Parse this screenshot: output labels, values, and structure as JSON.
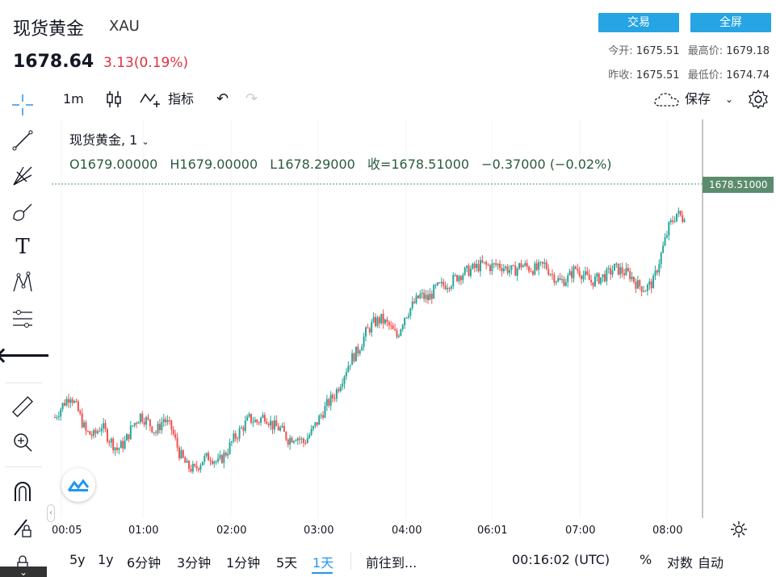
{
  "header": {
    "title": "现货黄金",
    "ticker": "XAU",
    "price": "1678.64",
    "change": "3.13(0.19%)",
    "trade_btn": "交易",
    "fullscreen_btn": "全屏",
    "open_label": "今开:",
    "open_value": "1675.51",
    "high_label": "最高价:",
    "high_value": "1679.18",
    "prev_close_label": "昨收:",
    "prev_close_value": "1675.51",
    "low_label": "最低价:",
    "low_value": "1674.74"
  },
  "toolbar": {
    "interval": "1m",
    "indicators": "指标",
    "save": "保存"
  },
  "legend": {
    "symbol": "现货黄金, 1",
    "o": "O1679.00000",
    "h": "H1679.00000",
    "l": "L1678.29000",
    "c": "收=1678.51000",
    "chg": "−0.37000 (−0.02%)"
  },
  "price_tag": "1678.51000",
  "bottom": {
    "ranges": [
      "5y",
      "1y",
      "6分钟",
      "3分钟",
      "1分钟",
      "5天",
      "1天"
    ],
    "goto": "前往到...",
    "clock": "00:16:02 (UTC)",
    "percent": "%",
    "log": "对数",
    "auto": "自动"
  },
  "colors": {
    "accent": "#26a4e4",
    "up": "#26a69a",
    "down": "#ef5350",
    "negative_text": "#e0313e"
  },
  "chart_data": {
    "type": "candlestick",
    "x_ticks": [
      "00:05",
      "01:00",
      "02:00",
      "03:00",
      "04:00",
      "06:01",
      "07:00",
      "08:00"
    ],
    "ylim": [
      1674.5,
      1679.5
    ],
    "last_price": 1678.51,
    "closes": [
      1675.62,
      1675.8,
      1675.95,
      1675.7,
      1675.4,
      1675.35,
      1675.5,
      1675.3,
      1675.15,
      1675.25,
      1675.5,
      1675.65,
      1675.55,
      1675.4,
      1675.6,
      1675.45,
      1675.1,
      1674.9,
      1674.85,
      1675.0,
      1675.05,
      1674.95,
      1675.1,
      1675.3,
      1675.45,
      1675.6,
      1675.55,
      1675.65,
      1675.5,
      1675.45,
      1675.3,
      1675.35,
      1675.25,
      1675.4,
      1675.6,
      1675.8,
      1675.95,
      1676.2,
      1676.45,
      1676.6,
      1676.85,
      1677.0,
      1677.05,
      1676.95,
      1676.8,
      1677.1,
      1677.25,
      1677.4,
      1677.35,
      1677.5,
      1677.55,
      1677.6,
      1677.7,
      1677.75,
      1677.8,
      1677.85,
      1677.82,
      1677.85,
      1677.8,
      1677.75,
      1677.85,
      1677.8,
      1677.78,
      1677.85,
      1677.7,
      1677.6,
      1677.65,
      1677.8,
      1677.7,
      1677.6,
      1677.65,
      1677.7,
      1677.8,
      1677.75,
      1677.7,
      1677.55,
      1677.5,
      1677.6,
      1678.0,
      1678.4,
      1678.6,
      1678.51
    ]
  }
}
